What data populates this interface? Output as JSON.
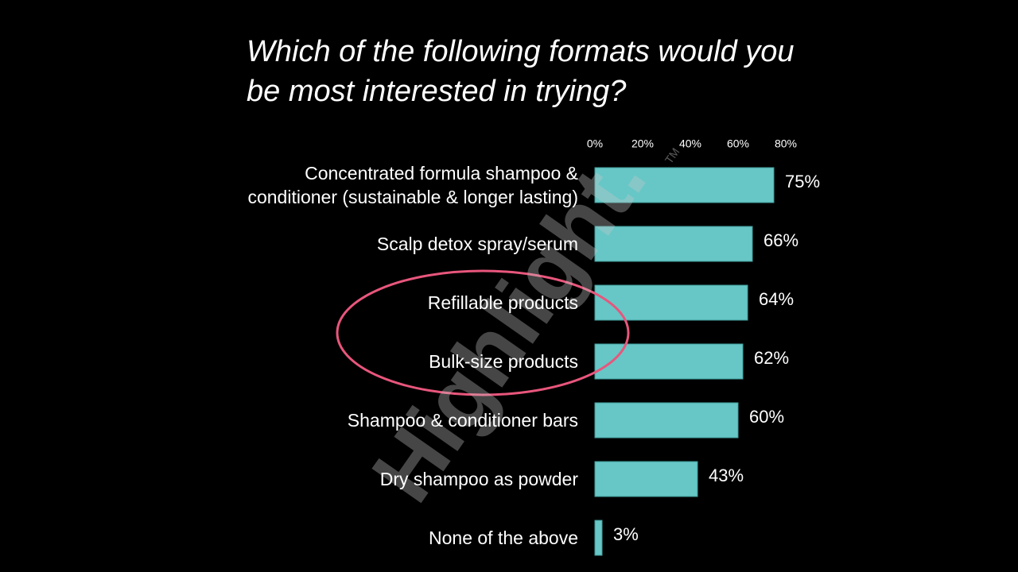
{
  "chart_data": {
    "type": "barh",
    "title": "Which of the following formats would you be most interested in trying?",
    "categories": [
      "Concentrated formula shampoo & conditioner (sustainable & longer lasting)",
      "Scalp detox spray/serum",
      "Refillable products",
      "Bulk-size products",
      "Shampoo & conditioner bars",
      "Dry shampoo as powder",
      "None of the above"
    ],
    "values": [
      75,
      66,
      64,
      62,
      60,
      43,
      3
    ],
    "value_labels": [
      "75%",
      "66%",
      "64%",
      "62%",
      "60%",
      "43%",
      "3%"
    ],
    "color": "#66c7c6",
    "xlim": [
      0,
      80
    ],
    "xticks": [
      {
        "value": 0,
        "label": "0%"
      },
      {
        "value": 20,
        "label": "20%"
      },
      {
        "value": 40,
        "label": "40%"
      },
      {
        "value": 60,
        "label": "60%"
      },
      {
        "value": 80,
        "label": "80%"
      }
    ],
    "watermark": "Highlight.",
    "watermark_mark": "TM"
  }
}
